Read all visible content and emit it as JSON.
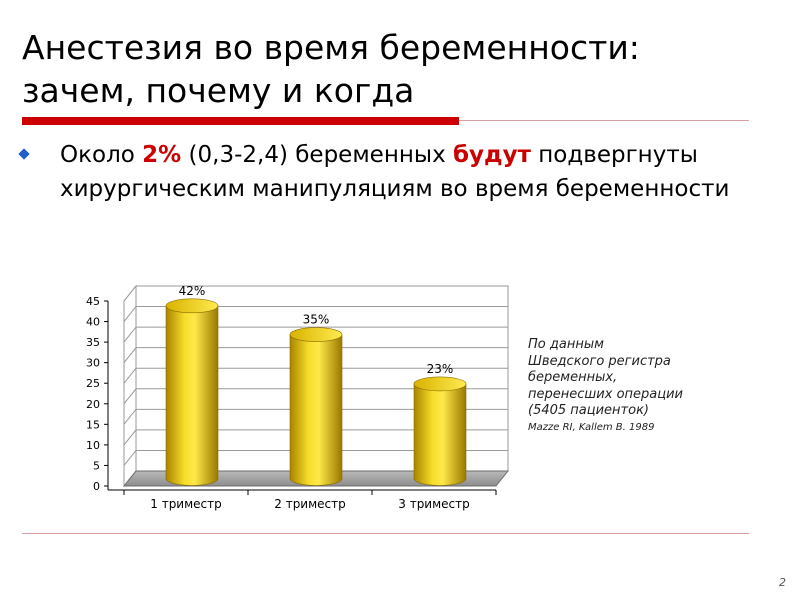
{
  "slide": {
    "title_line1": "Анестезия во время беременности:",
    "title_line2": "зачем, почему и когда",
    "bullet": {
      "p1": "Около ",
      "hl1": "2%",
      "p2": " (0,3-2,4) беременных ",
      "hl2": "будут",
      "p3": " подвергнуты хирургическим манипуляциям во время беременности"
    },
    "note": {
      "lines": [
        "По данным",
        "Шведского регистра",
        "беременных,",
        "перенесших операции",
        "(5405 пациенток)"
      ],
      "source": "Mazze RI, Kallem B. 1989"
    },
    "page_number": "2"
  },
  "colors": {
    "accent_red": "#cc0000",
    "bullet_blue": "#1f5fc9",
    "bar_gold": "#e8c000"
  },
  "chart_data": {
    "type": "bar",
    "style": "3d-cylinder",
    "categories": [
      "1 триместр",
      "2 триместр",
      "3 триместр"
    ],
    "values": [
      42,
      35,
      23
    ],
    "data_labels": [
      "42%",
      "35%",
      "23%"
    ],
    "ylim": [
      0,
      45
    ],
    "yticks": [
      0,
      5,
      10,
      15,
      20,
      25,
      30,
      35,
      40,
      45
    ],
    "ytick_labels": [
      "0",
      "5",
      "10",
      "15",
      "20",
      "25",
      "30",
      "35",
      "40",
      "45"
    ],
    "grid": true,
    "title": "",
    "xlabel": "",
    "ylabel": ""
  }
}
